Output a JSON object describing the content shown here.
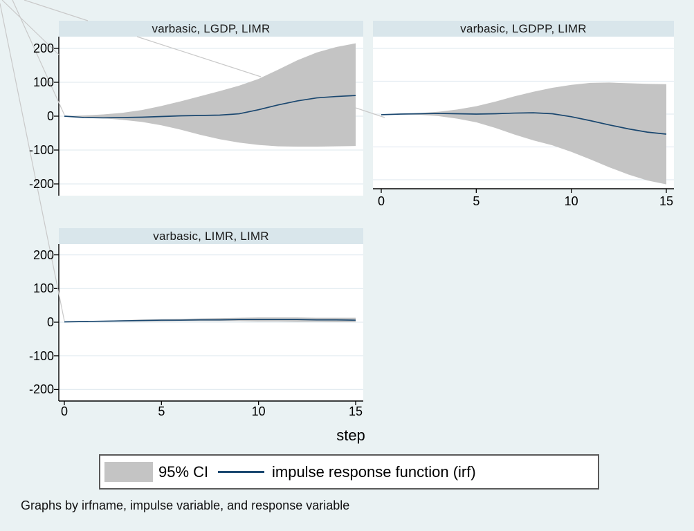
{
  "figure": {
    "xlabel": "step",
    "note": "Graphs by irfname, impulse variable, and response variable",
    "legend": {
      "ci_label": "95% CI",
      "irf_label": "impulse response function (irf)"
    },
    "colors": {
      "background": "#eaf2f3",
      "panel_strip": "#d9e6eb",
      "plot_bg": "#ffffff",
      "grid": "#e3ecf1",
      "ci_band": "#c4c4c4",
      "irf_line": "#1a476f",
      "axis": "#000000",
      "callout_line": "#c9c9c9"
    }
  },
  "chart_data": [
    {
      "type": "area",
      "title": "varbasic, LGDP, LIMR",
      "xlabel": "step",
      "xlim": [
        0,
        15
      ],
      "ylim": [
        -235,
        235
      ],
      "xticks": [
        0,
        5,
        10,
        15
      ],
      "yticks": [
        200,
        100,
        0,
        -100,
        -200
      ],
      "grid": true,
      "x": [
        0,
        1,
        2,
        3,
        4,
        5,
        6,
        7,
        8,
        9,
        10,
        11,
        12,
        13,
        14,
        15
      ],
      "irf": [
        0,
        -4,
        -5,
        -4,
        -3,
        -1,
        1,
        2,
        3,
        7,
        19,
        33,
        45,
        54,
        58,
        61
      ],
      "ci_upper": [
        0,
        2,
        5,
        10,
        18,
        30,
        44,
        59,
        74,
        90,
        110,
        137,
        165,
        188,
        204,
        215
      ],
      "ci_lower": [
        0,
        -3,
        -6,
        -11,
        -17,
        -27,
        -40,
        -55,
        -68,
        -78,
        -85,
        -89,
        -90,
        -90,
        -89,
        -88
      ]
    },
    {
      "type": "area",
      "title": "varbasic, LGDPP, LIMR",
      "xlabel": "step",
      "xlim": [
        0,
        15
      ],
      "ylim": [
        -227,
        236
      ],
      "xticks": [
        0,
        5,
        10,
        15
      ],
      "yticks": [
        200,
        100,
        0,
        -100,
        -200
      ],
      "grid": true,
      "x": [
        0,
        1,
        2,
        3,
        4,
        5,
        6,
        7,
        8,
        9,
        10,
        11,
        12,
        13,
        14,
        15
      ],
      "irf": [
        -2,
        0,
        1,
        2,
        1,
        0,
        1,
        3,
        4,
        1,
        -8,
        -20,
        -33,
        -45,
        -55,
        -61
      ],
      "ci_upper": [
        -2,
        0,
        3,
        7,
        14,
        24,
        38,
        54,
        68,
        80,
        89,
        95,
        96,
        94,
        92,
        91
      ],
      "ci_lower": [
        -2,
        -1,
        -2,
        -6,
        -14,
        -25,
        -42,
        -62,
        -80,
        -95,
        -115,
        -138,
        -162,
        -184,
        -202,
        -214
      ]
    },
    {
      "type": "area",
      "title": "varbasic, LIMR, LIMR",
      "xlabel": "step",
      "xlim": [
        0,
        15
      ],
      "ylim": [
        -232,
        232
      ],
      "xticks": [
        0,
        5,
        10,
        15
      ],
      "yticks": [
        200,
        100,
        0,
        -100,
        -200
      ],
      "grid": true,
      "x": [
        0,
        1,
        2,
        3,
        4,
        5,
        6,
        7,
        8,
        9,
        10,
        11,
        12,
        13,
        14,
        15
      ],
      "irf": [
        1,
        2,
        3,
        4,
        5,
        6,
        6,
        7,
        7,
        8,
        8,
        8,
        8,
        7,
        7,
        6
      ],
      "ci_upper": [
        1,
        3,
        4,
        6,
        8,
        9,
        10,
        11,
        12,
        13,
        14,
        14,
        14,
        13,
        13,
        13
      ],
      "ci_lower": [
        1,
        1,
        1,
        2,
        2,
        2,
        3,
        3,
        3,
        3,
        2,
        2,
        1,
        1,
        0,
        0
      ]
    }
  ]
}
